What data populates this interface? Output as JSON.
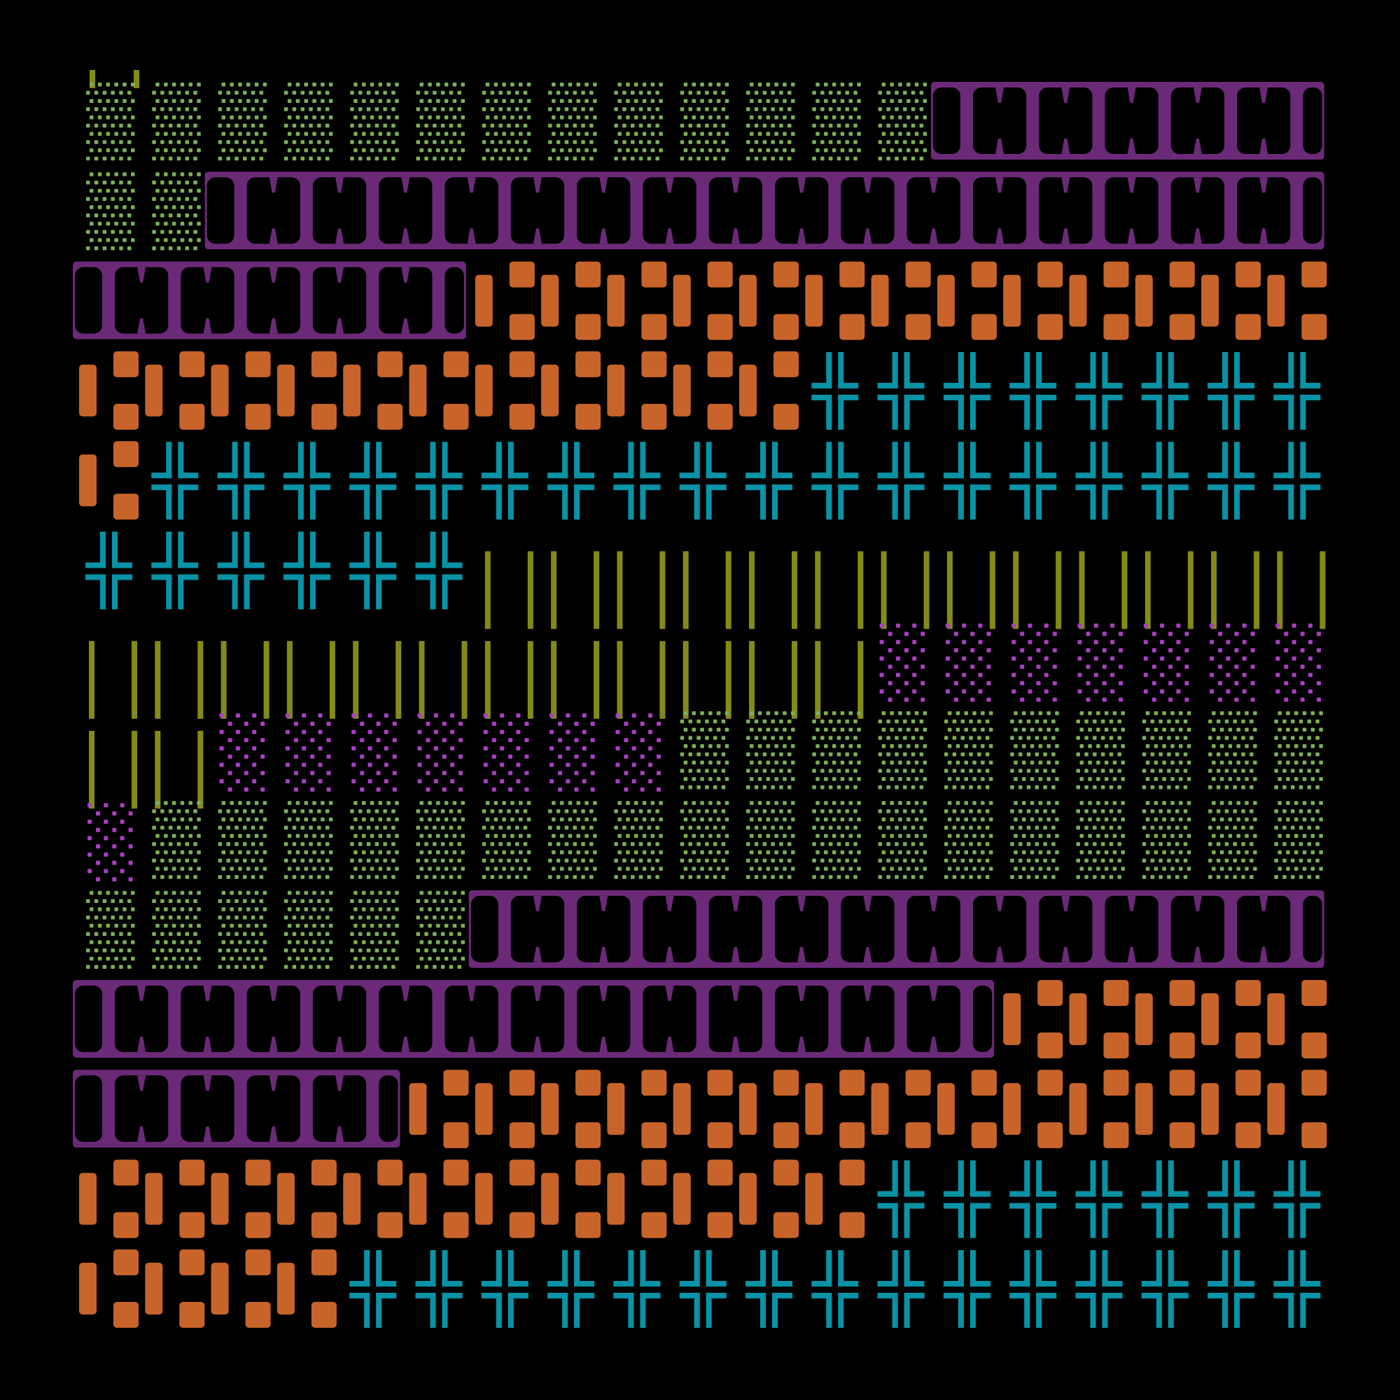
{
  "palette": {
    "background": "#000000",
    "green_dots": "#7bb055",
    "purple_serif": "#6b2a78",
    "orange_blocks": "#c8642a",
    "teal_cross": "#0a93a7",
    "olive_lines": "#858a17",
    "magenta_dots": "#a640c0"
  },
  "grid": {
    "columns": 19,
    "rows": 14
  },
  "rows": [
    [
      [
        "green_dots",
        13
      ],
      [
        "purple_serif",
        6
      ]
    ],
    [
      [
        "green_dots",
        2
      ],
      [
        "purple_serif",
        17
      ]
    ],
    [
      [
        "purple_serif",
        6
      ],
      [
        "orange_blocks",
        13
      ]
    ],
    [
      [
        "orange_blocks",
        11
      ],
      [
        "teal_cross",
        8
      ]
    ],
    [
      [
        "orange_blocks",
        1
      ],
      [
        "teal_cross",
        18
      ]
    ],
    [
      [
        "teal_cross",
        6
      ],
      [
        "olive_lines",
        13
      ]
    ],
    [
      [
        "olive_lines",
        12
      ],
      [
        "magenta_dots",
        7
      ]
    ],
    [
      [
        "olive_lines",
        2
      ],
      [
        "magenta_dots",
        7
      ],
      [
        "green_dots",
        10
      ]
    ],
    [
      [
        "magenta_dots",
        1
      ],
      [
        "green_dots",
        18
      ]
    ],
    [
      [
        "green_dots",
        6
      ],
      [
        "purple_serif",
        13
      ]
    ],
    [
      [
        "purple_serif",
        14
      ],
      [
        "orange_blocks",
        5
      ]
    ],
    [
      [
        "purple_serif",
        5
      ],
      [
        "orange_blocks",
        14
      ]
    ],
    [
      [
        "orange_blocks",
        12
      ],
      [
        "teal_cross",
        7
      ]
    ],
    [
      [
        "orange_blocks",
        4
      ],
      [
        "teal_cross",
        15
      ]
    ]
  ]
}
